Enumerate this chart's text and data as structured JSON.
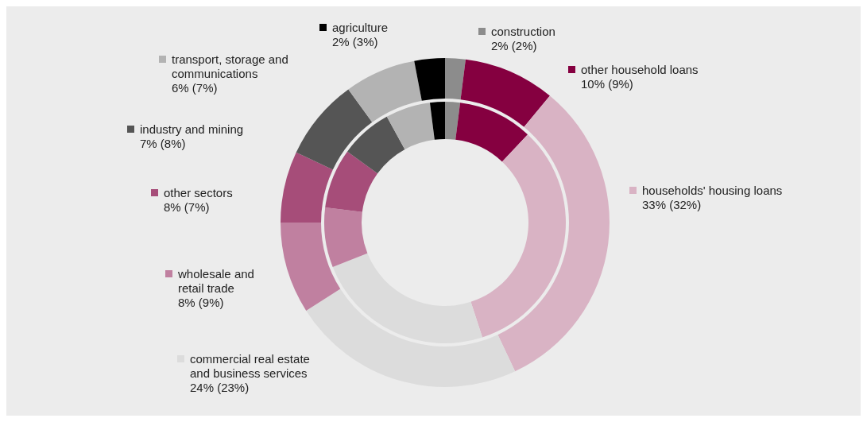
{
  "chart_data": {
    "type": "donut",
    "categories": [
      "construction",
      "other household loans",
      "households' housing loans",
      "commercial real estate and business services",
      "wholesale and retail trade",
      "other sectors",
      "industry and mining",
      "transport, storage and communications",
      "agriculture"
    ],
    "colors": [
      "#8c8c8c",
      "#850040",
      "#d9b3c4",
      "#dcdcdc",
      "#c080a0",
      "#a64d79",
      "#555555",
      "#b3b3b3",
      "#000000"
    ],
    "series": [
      {
        "values": [
          2,
          10,
          33,
          24,
          8,
          8,
          7,
          6,
          2
        ],
        "value_labels": [
          "2% (2%)",
          "10% (9%)",
          "33% (32%)",
          "24% (23%)",
          "8% (9%)",
          "8% (7%)",
          "7% (8%)",
          "6% (7%)",
          "2% (3%)"
        ]
      },
      {
        "values": [
          2,
          9,
          32,
          23,
          9,
          7,
          8,
          7,
          3
        ]
      }
    ],
    "legend": "left"
  }
}
